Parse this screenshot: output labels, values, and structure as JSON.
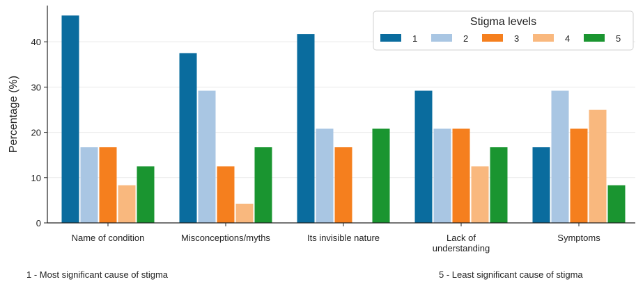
{
  "chart_data": {
    "type": "bar",
    "title": "",
    "xlabel": "",
    "ylabel": "Percentage (%)",
    "ylim": [
      0,
      48
    ],
    "yticks": [
      0,
      10,
      20,
      30,
      40
    ],
    "grid": true,
    "categories": [
      [
        "Name of condition"
      ],
      [
        "Misconceptions/myths"
      ],
      [
        "Its invisible nature"
      ],
      [
        "Lack of",
        "understanding"
      ],
      [
        "Symptoms"
      ]
    ],
    "series": [
      {
        "name": "1",
        "color": "#0a6c9e",
        "values": [
          45.8,
          37.5,
          41.7,
          29.2,
          16.7
        ]
      },
      {
        "name": "2",
        "color": "#a9c6e3",
        "values": [
          16.7,
          29.2,
          20.8,
          20.8,
          29.2
        ]
      },
      {
        "name": "3",
        "color": "#f57f1e",
        "values": [
          16.7,
          12.5,
          16.7,
          20.8,
          20.8
        ]
      },
      {
        "name": "4",
        "color": "#f9b87e",
        "values": [
          8.3,
          4.2,
          0,
          12.5,
          25.0
        ]
      },
      {
        "name": "5",
        "color": "#1a9530",
        "values": [
          12.5,
          16.7,
          20.8,
          16.7,
          8.3
        ]
      }
    ],
    "legend": {
      "title": "Stigma levels",
      "placement": "top-right"
    }
  },
  "footnotes": {
    "left": "1 - Most significant cause of stigma",
    "right": "5 - Least significant cause of stigma"
  }
}
